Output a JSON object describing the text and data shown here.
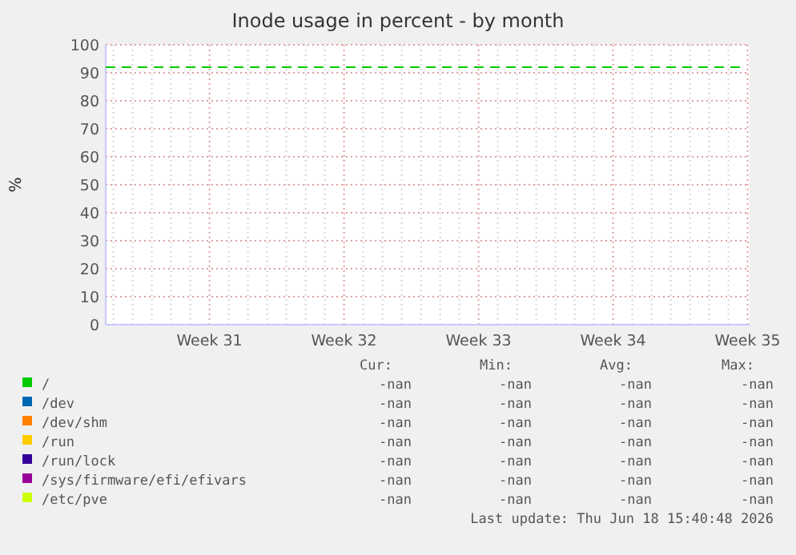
{
  "chart_data": {
    "type": "line",
    "title": "Inode usage in percent - by month",
    "ylabel": "%",
    "categories": [
      null,
      null,
      null,
      null,
      null,
      "Week 31",
      null,
      null,
      null,
      null,
      null,
      null,
      "Week 32",
      null,
      null,
      null,
      null,
      null,
      null,
      "Week 33",
      null,
      null,
      null,
      null,
      null,
      null,
      "Week 34",
      null,
      null,
      null,
      null,
      null,
      null,
      "Week 35"
    ],
    "ylim": [
      0,
      100
    ],
    "yticks": [
      0,
      10,
      20,
      30,
      40,
      50,
      60,
      70,
      80,
      90,
      100
    ],
    "grid": true,
    "legend": "bottom",
    "series": [
      {
        "name": "/",
        "color": "#00cc00",
        "values": [
          null,
          null,
          null,
          null,
          null,
          null,
          null,
          null,
          null,
          null,
          null,
          null,
          null,
          null,
          null,
          null,
          null,
          null,
          null,
          null,
          null,
          null,
          null,
          null,
          null,
          null,
          null,
          null,
          null,
          null,
          null,
          null,
          null,
          null
        ]
      },
      {
        "name": "/dev",
        "color": "#0066b3",
        "values": [
          null,
          null,
          null,
          null,
          null,
          null,
          null,
          null,
          null,
          null,
          null,
          null,
          null,
          null,
          null,
          null,
          null,
          null,
          null,
          null,
          null,
          null,
          null,
          null,
          null,
          null,
          null,
          null,
          null,
          null,
          null,
          null,
          null,
          null
        ]
      },
      {
        "name": "/dev/shm",
        "color": "#ff8000",
        "values": [
          null,
          null,
          null,
          null,
          null,
          null,
          null,
          null,
          null,
          null,
          null,
          null,
          null,
          null,
          null,
          null,
          null,
          null,
          null,
          null,
          null,
          null,
          null,
          null,
          null,
          null,
          null,
          null,
          null,
          null,
          null,
          null,
          null,
          null
        ]
      },
      {
        "name": "/run",
        "color": "#ffcc00",
        "values": [
          null,
          null,
          null,
          null,
          null,
          null,
          null,
          null,
          null,
          null,
          null,
          null,
          null,
          null,
          null,
          null,
          null,
          null,
          null,
          null,
          null,
          null,
          null,
          null,
          null,
          null,
          null,
          null,
          null,
          null,
          null,
          null,
          null,
          null
        ]
      },
      {
        "name": "/run/lock",
        "color": "#330099",
        "values": [
          null,
          null,
          null,
          null,
          null,
          null,
          null,
          null,
          null,
          null,
          null,
          null,
          null,
          null,
          null,
          null,
          null,
          null,
          null,
          null,
          null,
          null,
          null,
          null,
          null,
          null,
          null,
          null,
          null,
          null,
          null,
          null,
          null,
          null
        ]
      },
      {
        "name": "/sys/firmware/efi/efivars",
        "color": "#990099",
        "values": [
          null,
          null,
          null,
          null,
          null,
          null,
          null,
          null,
          null,
          null,
          null,
          null,
          null,
          null,
          null,
          null,
          null,
          null,
          null,
          null,
          null,
          null,
          null,
          null,
          null,
          null,
          null,
          null,
          null,
          null,
          null,
          null,
          null,
          null
        ]
      },
      {
        "name": "/etc/pve",
        "color": "#ccff00",
        "values": [
          null,
          null,
          null,
          null,
          null,
          null,
          null,
          null,
          null,
          null,
          null,
          null,
          null,
          null,
          null,
          null,
          null,
          null,
          null,
          null,
          null,
          null,
          null,
          null,
          null,
          null,
          null,
          null,
          null,
          null,
          null,
          null,
          null,
          null
        ]
      }
    ],
    "ref_lines": [
      {
        "axis": "y",
        "value": 92,
        "color": "#00cc00",
        "line_style": "dashed"
      }
    ],
    "annotations": [
      "Cur:",
      "Min:",
      "Avg:",
      "Max:",
      "-nan",
      "-nan",
      "-nan",
      "-nan",
      "-nan",
      "-nan",
      "-nan",
      "-nan",
      "-nan",
      "-nan",
      "-nan",
      "-nan",
      "-nan",
      "-nan",
      "-nan",
      "-nan",
      "-nan",
      "-nan",
      "-nan",
      "-nan",
      "-nan",
      "-nan",
      "-nan",
      "-nan",
      "-nan",
      "-nan",
      "-nan",
      "-nan",
      "Last update: Thu Jun 18 15:40:48 2026"
    ]
  }
}
